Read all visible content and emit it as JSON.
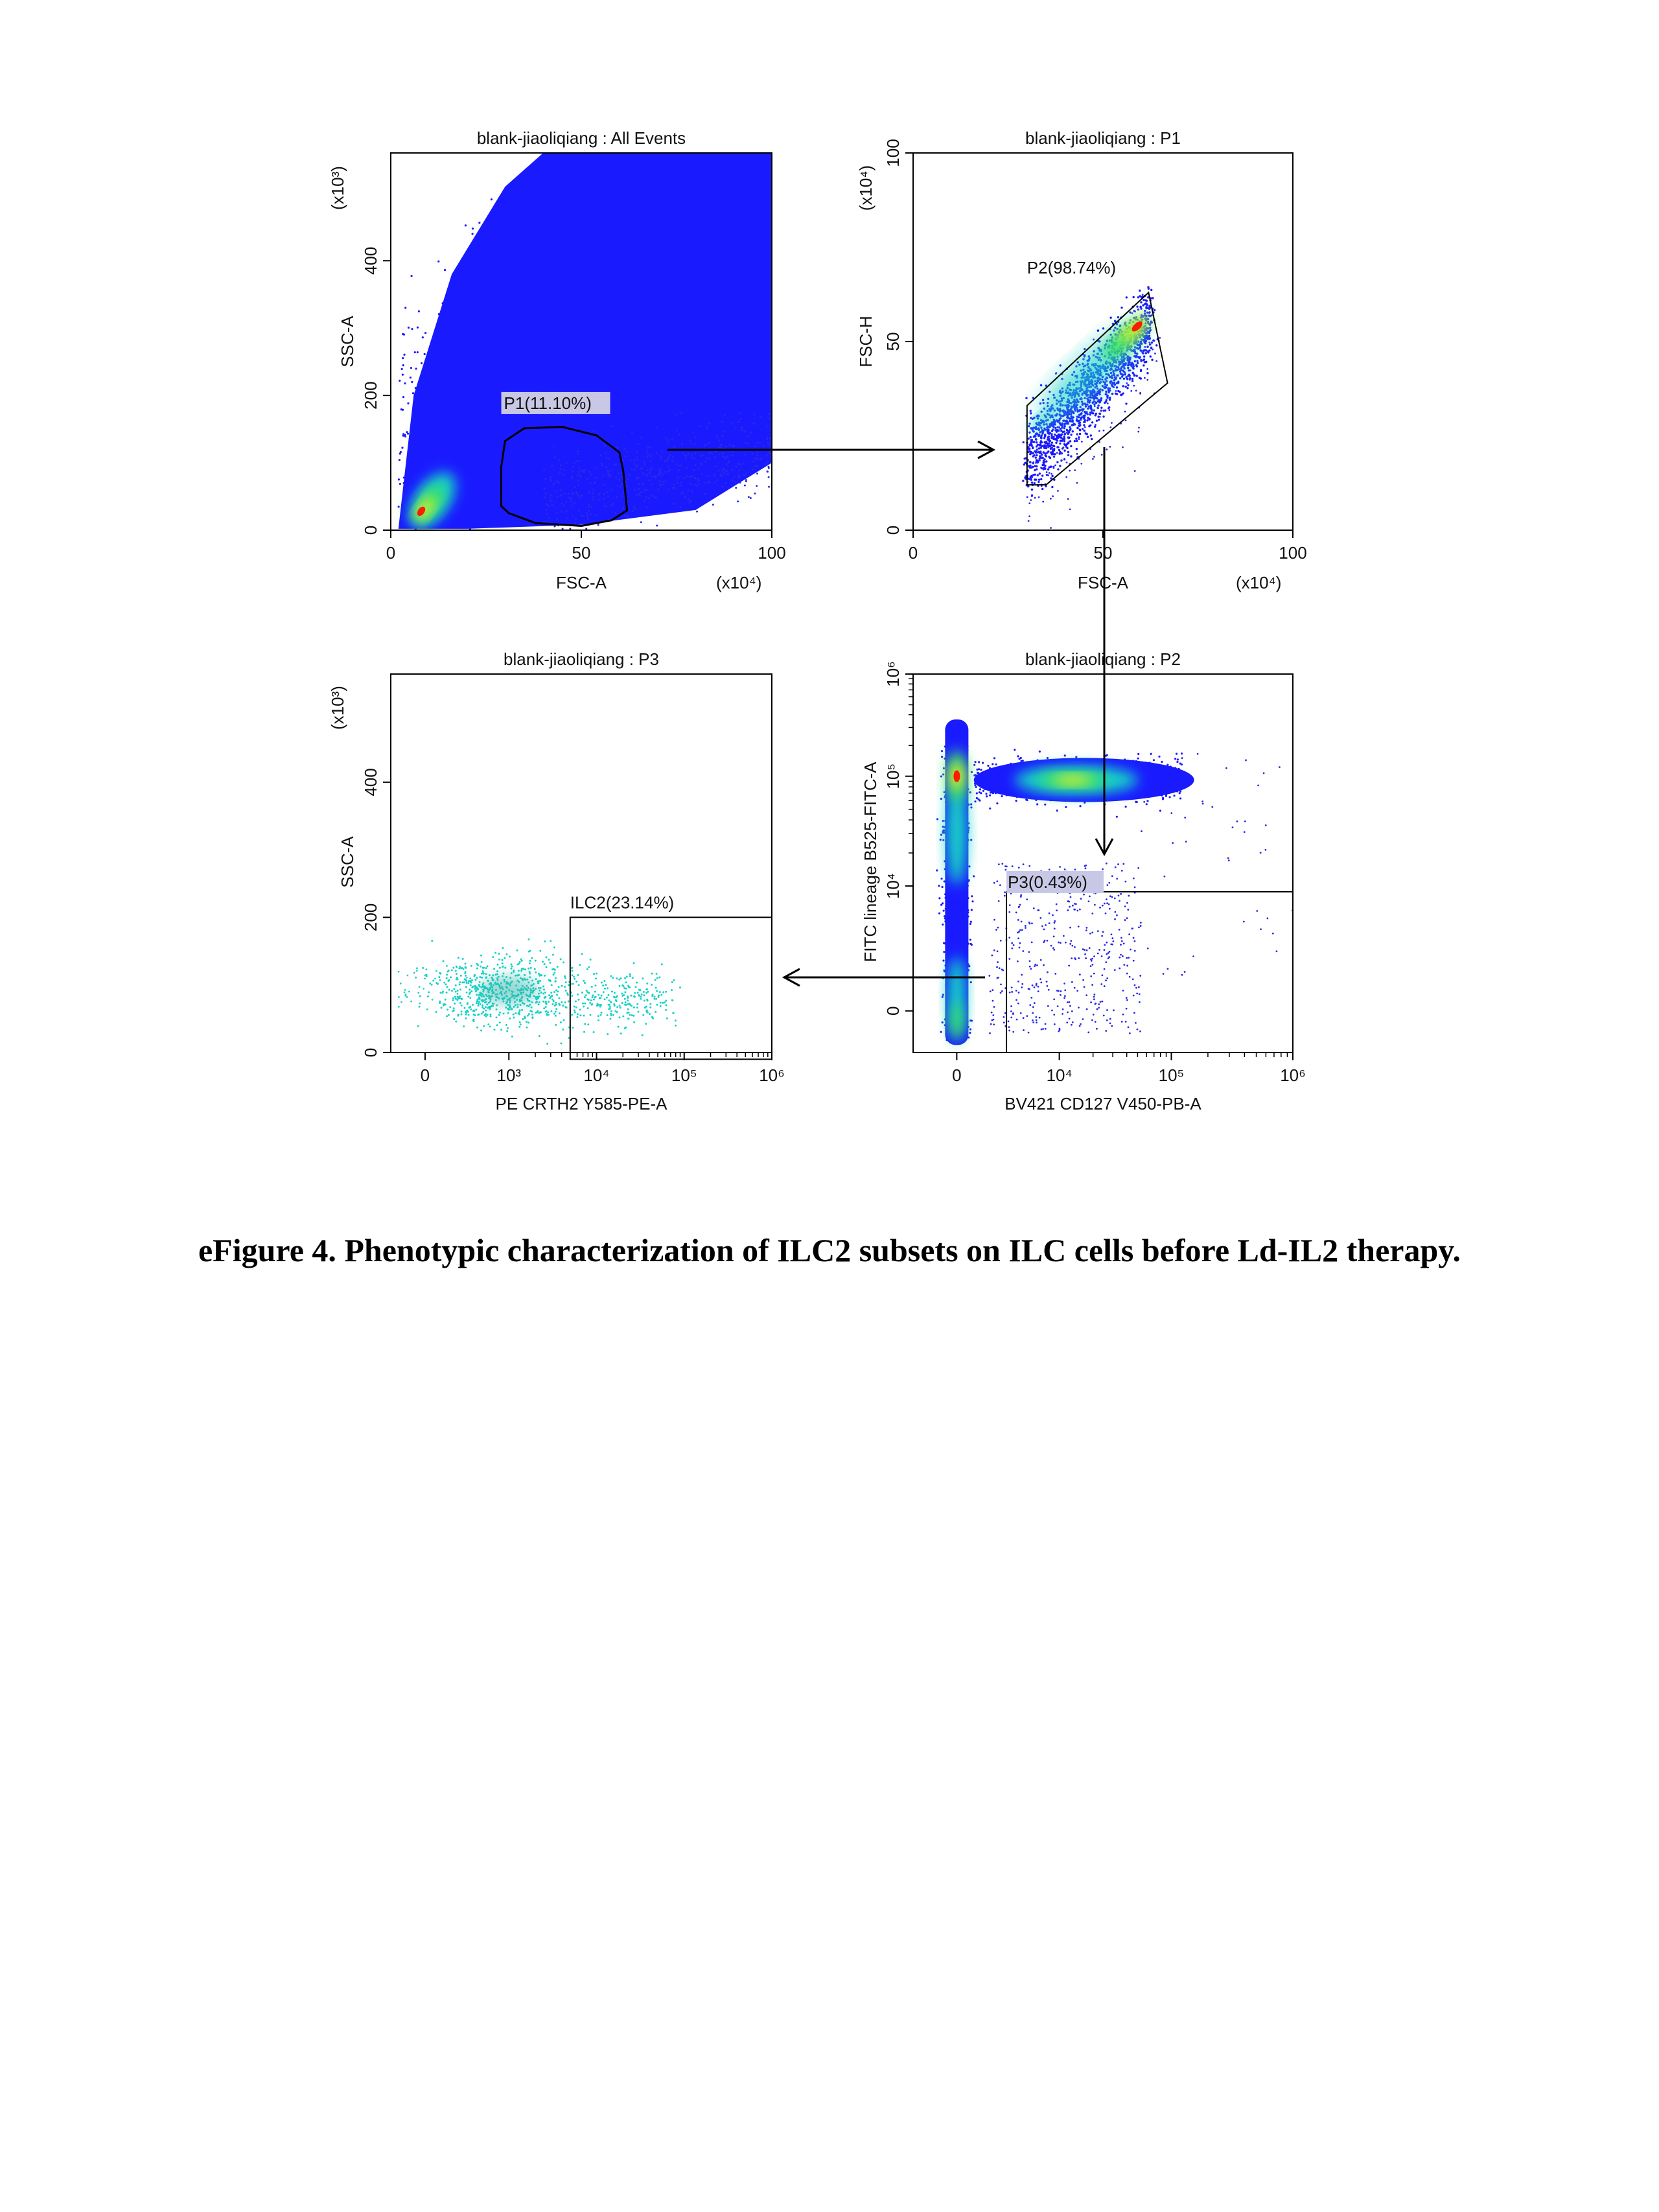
{
  "colors": {
    "dense_blue": "#1a1aff",
    "sparse_blue": "#2a2ae8",
    "cyan": "#19d1c6",
    "green": "#35e06a",
    "yellow": "#f0f020",
    "red": "#ff1a00",
    "axis": "#000000",
    "label_bg": "#c8c8e6"
  },
  "caption": "eFigure 4. Phenotypic characterization of ILC2 subsets on ILC cells before Ld-IL2 therapy.",
  "chart_data": [
    {
      "type": "scatter",
      "title": "blank-jiaoliqiang : All Events",
      "xlabel": "FSC-A",
      "x_multiplier": "(x10⁴)",
      "ylabel": "SSC-A",
      "y_multiplier": "(x10³)",
      "xlim": [
        0,
        100
      ],
      "ylim": [
        0,
        560
      ],
      "x_ticks": [
        "0",
        "50",
        "100"
      ],
      "y_ticks": [
        "0",
        "200",
        "400"
      ],
      "x_tick_values": [
        0,
        50,
        100
      ],
      "y_tick_values": [
        0,
        200,
        400
      ],
      "gate": {
        "name": "P1(11.10%)",
        "shape": "polygon",
        "points": [
          [
            29,
            17
          ],
          [
            31,
            12
          ],
          [
            38,
            5
          ],
          [
            50,
            3
          ],
          [
            58,
            7
          ],
          [
            62,
            14
          ],
          [
            61,
            42
          ],
          [
            60,
            55
          ],
          [
            54,
            67
          ],
          [
            45,
            73
          ],
          [
            35,
            72
          ],
          [
            30,
            63
          ],
          [
            29,
            45
          ]
        ]
      },
      "populations": [
        {
          "kind": "diagonal-cloud",
          "from": [
            3,
            5
          ],
          "to": [
            100,
            560
          ],
          "density": "saturated"
        },
        {
          "kind": "hotspot",
          "center": [
            9,
            35
          ],
          "peak": "red"
        }
      ]
    },
    {
      "type": "scatter",
      "title": "blank-jiaoliqiang : P1",
      "xlabel": "FSC-A",
      "x_multiplier": "(x10⁴)",
      "ylabel": "FSC-H",
      "y_multiplier": "(x10⁴)",
      "xlim": [
        0,
        100
      ],
      "ylim": [
        0,
        100
      ],
      "x_ticks": [
        "0",
        "50",
        "100"
      ],
      "y_ticks": [
        "0",
        "50",
        "100"
      ],
      "x_tick_values": [
        0,
        50,
        100
      ],
      "y_tick_values": [
        0,
        50,
        100
      ],
      "gate": {
        "name": "P2(98.74%)",
        "shape": "polygon",
        "points": [
          [
            30,
            33
          ],
          [
            62,
            63
          ],
          [
            67,
            39
          ],
          [
            35,
            12
          ],
          [
            30,
            12
          ]
        ]
      },
      "populations": [
        {
          "kind": "band",
          "from": [
            30,
            25
          ],
          "to": [
            62,
            57
          ],
          "width": 10,
          "density": "dense"
        },
        {
          "kind": "hotspot",
          "center": [
            59,
            54
          ],
          "peak": "red"
        }
      ]
    },
    {
      "type": "scatter",
      "title": "blank-jiaoliqiang : P2",
      "xlabel": "BV421 CD127 V450-PB-A",
      "x_scale": "biexponential",
      "ylabel": "FITC lineage B525-FITC-A",
      "y_scale": "biexponential",
      "x_ticks": [
        "0",
        "10⁴",
        "10⁵",
        "10⁶"
      ],
      "y_ticks": [
        "0",
        "10⁴",
        "10⁵",
        "10⁶"
      ],
      "x_tick_values": [
        0,
        10000,
        100000,
        1000000
      ],
      "y_tick_values": [
        0,
        10000,
        100000,
        1000000
      ],
      "gate": {
        "name": "P3(0.43%)",
        "shape": "rectangle",
        "x_range": [
          2000,
          1000000
        ],
        "y_range": [
          -300,
          9000
        ]
      },
      "populations": [
        {
          "kind": "column",
          "x": 0,
          "y_range": [
            -300,
            200000
          ],
          "peak_y": 100000,
          "peak": "red"
        },
        {
          "kind": "horizontal-cloud",
          "x_range": [
            2000,
            100000
          ],
          "y": 70000,
          "peak": "yellow"
        },
        {
          "kind": "sparse-region",
          "x_range": [
            1000,
            60000
          ],
          "y_range": [
            -300,
            30000
          ]
        }
      ]
    },
    {
      "type": "scatter",
      "title": "blank-jiaoliqiang : P3",
      "xlabel": "PE CRTH2 Y585-PE-A",
      "x_scale": "biexponential",
      "ylabel": "SSC-A",
      "y_multiplier": "(x10³)",
      "ylim": [
        0,
        560
      ],
      "x_ticks": [
        "0",
        "10³",
        "10⁴",
        "10⁵",
        "10⁶"
      ],
      "y_ticks": [
        "0",
        "200",
        "400"
      ],
      "x_tick_values": [
        0,
        1000,
        10000,
        100000,
        1000000
      ],
      "y_tick_values": [
        0,
        200,
        400
      ],
      "gate": {
        "name": "ILC2(23.14%)",
        "shape": "rectangle",
        "x_range": [
          5000,
          1000000
        ],
        "y_range": [
          -10,
          200
        ]
      },
      "populations": [
        {
          "kind": "cluster",
          "x_center": 1000,
          "y_center": 90,
          "density": "medium"
        },
        {
          "kind": "cluster",
          "x_center": 30000,
          "y_center": 80,
          "density": "low"
        }
      ]
    }
  ]
}
